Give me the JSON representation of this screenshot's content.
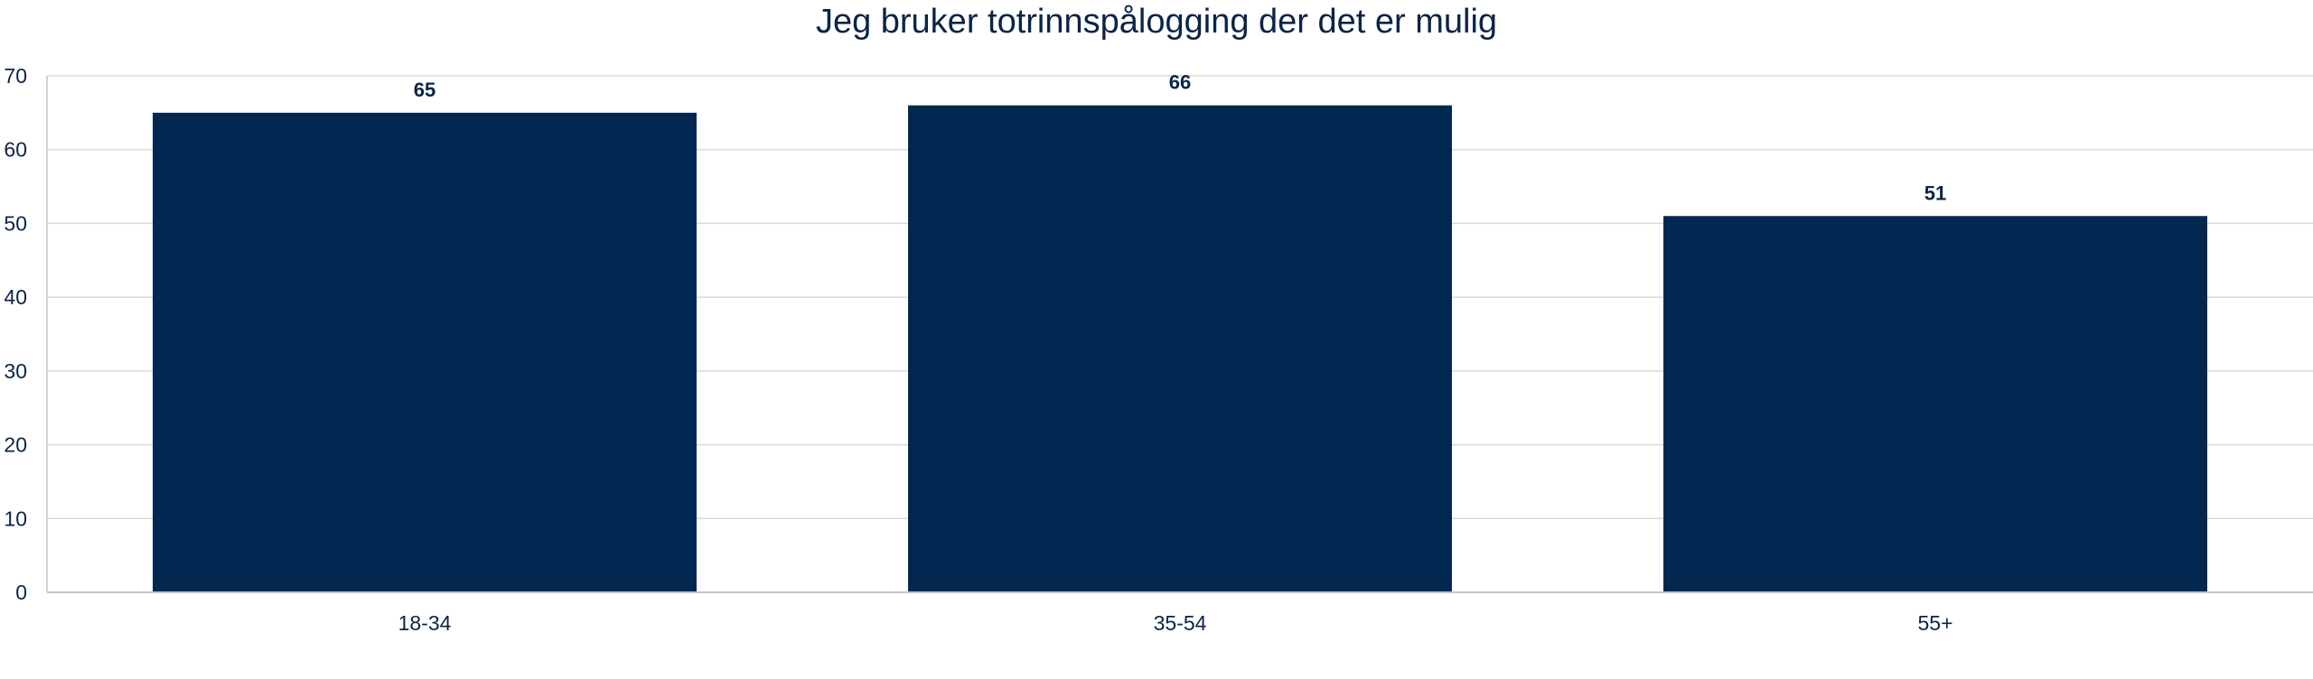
{
  "chart_data": {
    "type": "bar",
    "title": "Jeg bruker totrinnspålogging der det er mulig",
    "categories": [
      "18-34",
      "35-54",
      "55+"
    ],
    "values": [
      65,
      66,
      51
    ],
    "data_labels": [
      "65",
      "66",
      "51"
    ],
    "y_ticks": [
      "0",
      "10",
      "20",
      "30",
      "40",
      "50",
      "60",
      "70"
    ],
    "ylim": [
      0,
      70
    ],
    "xlabel": "",
    "ylabel": "",
    "grid": true,
    "legend": "none",
    "colors": {
      "bar": "#022751",
      "text": "#0b2447",
      "grid": "#d9d9d9",
      "axis": "#bfc5cc"
    }
  }
}
